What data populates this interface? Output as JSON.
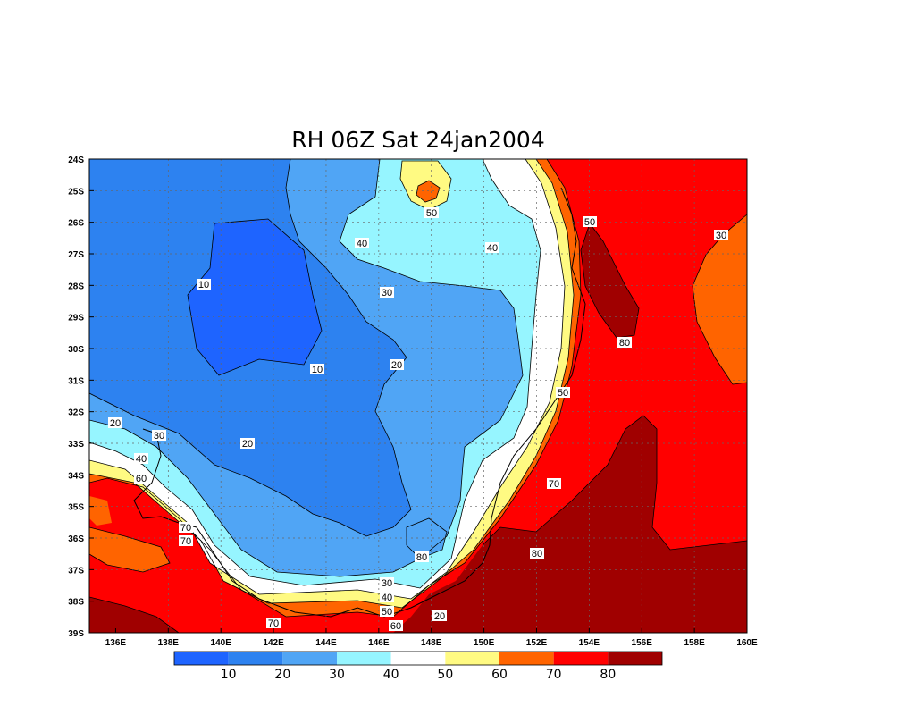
{
  "title": "RH 06Z Sat 24jan2004",
  "colors": {
    "c0": "#1e64ff",
    "c10": "#2d82f0",
    "c20": "#50a5f5",
    "c30": "#96f5ff",
    "c40": "#ffffff",
    "c50": "#fffa82",
    "c60": "#ff6400",
    "c70": "#ff0000",
    "c80": "#a00000"
  },
  "chart_data": {
    "type": "heatmap",
    "variable": "RH",
    "x_ticks": [
      "136E",
      "138E",
      "140E",
      "142E",
      "144E",
      "146E",
      "148E",
      "150E",
      "152E",
      "154E",
      "156E",
      "158E",
      "160E"
    ],
    "y_ticks": [
      "24S",
      "25S",
      "26S",
      "27S",
      "28S",
      "29S",
      "30S",
      "31S",
      "32S",
      "33S",
      "34S",
      "35S",
      "36S",
      "37S",
      "38S",
      "39S"
    ],
    "lon_range": [
      135,
      160
    ],
    "lat_range": [
      -39,
      -24
    ],
    "grid": true,
    "contour_levels": [
      10,
      20,
      30,
      40,
      50,
      60,
      70,
      80
    ],
    "colorbar": {
      "labels": [
        "10",
        "20",
        "30",
        "40",
        "50",
        "60",
        "70",
        "80"
      ],
      "colors": [
        "#1e64ff",
        "#2d82f0",
        "#50a5f5",
        "#96f5ff",
        "#ffffff",
        "#fffa82",
        "#ff6400",
        "#ff0000",
        "#a00000"
      ]
    },
    "contour_labels": [
      "50",
      "40",
      "40",
      "30",
      "10",
      "20",
      "10",
      "20",
      "30",
      "40",
      "50",
      "20",
      "60",
      "70",
      "70",
      "30",
      "40",
      "50",
      "60",
      "70",
      "80",
      "20",
      "80",
      "70",
      "50",
      "80",
      "30",
      "70",
      "80"
    ]
  }
}
